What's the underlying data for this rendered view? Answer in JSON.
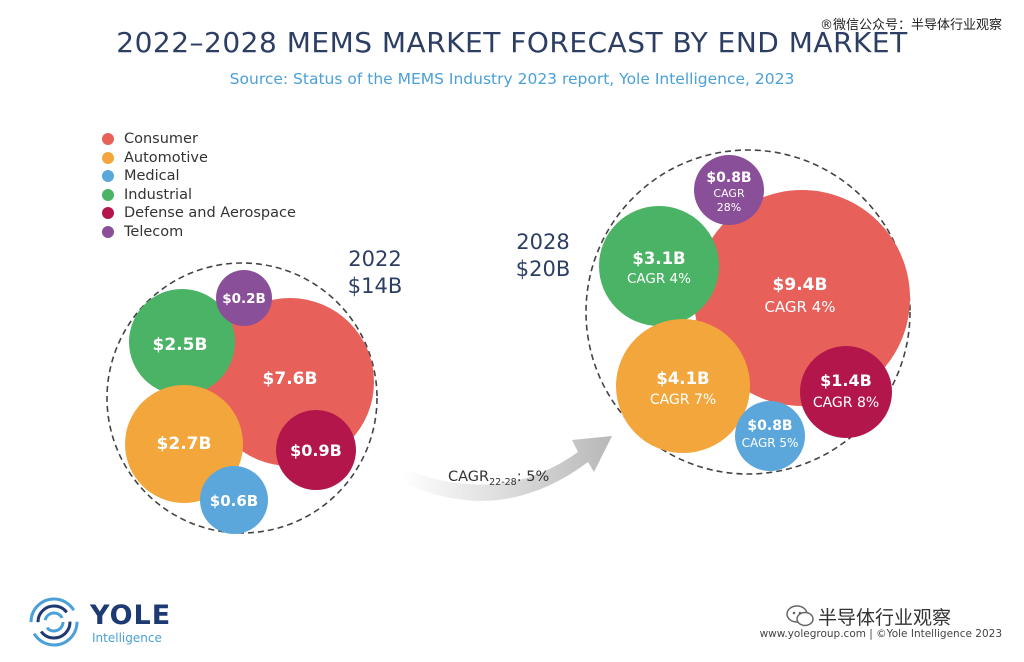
{
  "header": {
    "title": "2022–2028 MEMS MARKET FORECAST BY END MARKET",
    "subtitle": "Source: Status of the MEMS Industry 2023 report, Yole Intelligence, 2023",
    "watermark": "®微信公众号：半导体行业观察"
  },
  "legend": [
    {
      "label": "Consumer",
      "color": "#e8605a"
    },
    {
      "label": "Automotive",
      "color": "#f3a63b"
    },
    {
      "label": "Medical",
      "color": "#5ba7dc"
    },
    {
      "label": "Industrial",
      "color": "#4bb365"
    },
    {
      "label": "Defense and Aerospace",
      "color": "#b2164a"
    },
    {
      "label": "Telecom",
      "color": "#8a4f99"
    }
  ],
  "chart_data": {
    "type": "bubble",
    "title": "2022–2028 MEMS MARKET FORECAST BY END MARKET",
    "unit": "$B",
    "groups": [
      {
        "year": "2022",
        "total_label": "$14B",
        "total": 14,
        "segments": [
          {
            "name": "Consumer",
            "value": 7.6,
            "label": "$7.6B",
            "cagr": ""
          },
          {
            "name": "Automotive",
            "value": 2.7,
            "label": "$2.7B",
            "cagr": ""
          },
          {
            "name": "Medical",
            "value": 0.6,
            "label": "$0.6B",
            "cagr": ""
          },
          {
            "name": "Industrial",
            "value": 2.5,
            "label": "$2.5B",
            "cagr": ""
          },
          {
            "name": "Defense and Aerospace",
            "value": 0.9,
            "label": "$0.9B",
            "cagr": ""
          },
          {
            "name": "Telecom",
            "value": 0.2,
            "label": "$0.2B",
            "cagr": ""
          }
        ]
      },
      {
        "year": "2028",
        "total_label": "$20B",
        "total": 20,
        "segments": [
          {
            "name": "Consumer",
            "value": 9.4,
            "label": "$9.4B",
            "cagr": "CAGR 4%"
          },
          {
            "name": "Automotive",
            "value": 4.1,
            "label": "$4.1B",
            "cagr": "CAGR 7%"
          },
          {
            "name": "Medical",
            "value": 0.8,
            "label": "$0.8B",
            "cagr": "CAGR 5%"
          },
          {
            "name": "Industrial",
            "value": 3.1,
            "label": "$3.1B",
            "cagr": "CAGR 4%"
          },
          {
            "name": "Defense and Aerospace",
            "value": 1.4,
            "label": "$1.4B",
            "cagr": "CAGR 8%"
          },
          {
            "name": "Telecom",
            "value": 0.8,
            "label": "$0.8B",
            "cagr_line1": "CAGR",
            "cagr_line2": "28%"
          }
        ]
      }
    ],
    "overall_cagr": {
      "prefix": "CAGR",
      "sub": "22-28",
      "suffix": ": 5%"
    }
  },
  "branding": {
    "logo_name": "YOLE",
    "logo_sub": "Intelligence",
    "wechat_name": "半导体行业观察",
    "footer": "www.yolegroup.com | ©Yole Intelligence 2023"
  }
}
